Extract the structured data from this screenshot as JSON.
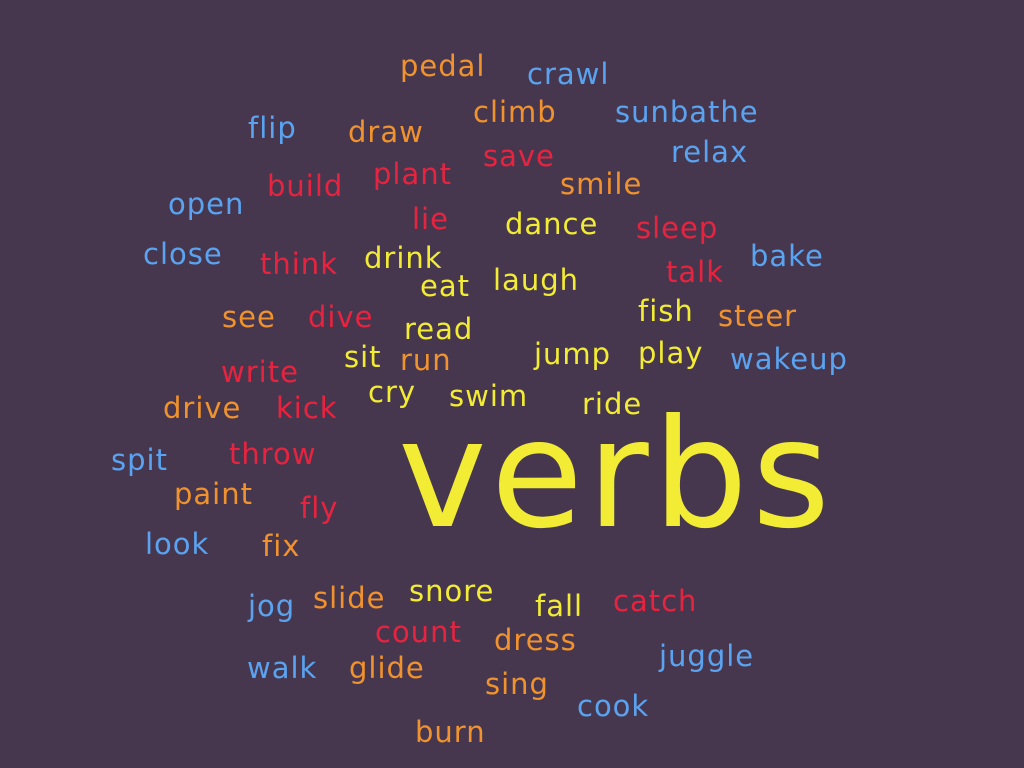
{
  "title": "verbs",
  "colors": {
    "background": "#46374f",
    "orange": "#f0922d",
    "blue": "#5aa3f0",
    "red": "#e8233f",
    "yellow": "#f2ec34"
  },
  "words": [
    {
      "text": "pedal",
      "color": "orange"
    },
    {
      "text": "crawl",
      "color": "blue"
    },
    {
      "text": "climb",
      "color": "orange"
    },
    {
      "text": "sunbathe",
      "color": "blue"
    },
    {
      "text": "flip",
      "color": "blue"
    },
    {
      "text": "draw",
      "color": "orange"
    },
    {
      "text": "save",
      "color": "red"
    },
    {
      "text": "relax",
      "color": "blue"
    },
    {
      "text": "build",
      "color": "red"
    },
    {
      "text": "plant",
      "color": "red"
    },
    {
      "text": "smile",
      "color": "orange"
    },
    {
      "text": "open",
      "color": "blue"
    },
    {
      "text": "lie",
      "color": "red"
    },
    {
      "text": "dance",
      "color": "yellow"
    },
    {
      "text": "sleep",
      "color": "red"
    },
    {
      "text": "close",
      "color": "blue"
    },
    {
      "text": "think",
      "color": "red"
    },
    {
      "text": "drink",
      "color": "yellow"
    },
    {
      "text": "talk",
      "color": "red"
    },
    {
      "text": "bake",
      "color": "blue"
    },
    {
      "text": "eat",
      "color": "yellow"
    },
    {
      "text": "laugh",
      "color": "yellow"
    },
    {
      "text": "see",
      "color": "orange"
    },
    {
      "text": "dive",
      "color": "red"
    },
    {
      "text": "fish",
      "color": "yellow"
    },
    {
      "text": "steer",
      "color": "orange"
    },
    {
      "text": "read",
      "color": "yellow"
    },
    {
      "text": "sit",
      "color": "yellow"
    },
    {
      "text": "run",
      "color": "orange"
    },
    {
      "text": "jump",
      "color": "yellow"
    },
    {
      "text": "play",
      "color": "yellow"
    },
    {
      "text": "wakeup",
      "color": "blue"
    },
    {
      "text": "write",
      "color": "red"
    },
    {
      "text": "cry",
      "color": "yellow"
    },
    {
      "text": "swim",
      "color": "yellow"
    },
    {
      "text": "drive",
      "color": "orange"
    },
    {
      "text": "kick",
      "color": "red"
    },
    {
      "text": "ride",
      "color": "yellow"
    },
    {
      "text": "spit",
      "color": "blue"
    },
    {
      "text": "throw",
      "color": "red"
    },
    {
      "text": "paint",
      "color": "orange"
    },
    {
      "text": "fly",
      "color": "red"
    },
    {
      "text": "look",
      "color": "blue"
    },
    {
      "text": "fix",
      "color": "orange"
    },
    {
      "text": "jog",
      "color": "blue"
    },
    {
      "text": "slide",
      "color": "orange"
    },
    {
      "text": "snore",
      "color": "yellow"
    },
    {
      "text": "fall",
      "color": "yellow"
    },
    {
      "text": "catch",
      "color": "red"
    },
    {
      "text": "count",
      "color": "red"
    },
    {
      "text": "dress",
      "color": "orange"
    },
    {
      "text": "juggle",
      "color": "blue"
    },
    {
      "text": "walk",
      "color": "blue"
    },
    {
      "text": "glide",
      "color": "orange"
    },
    {
      "text": "sing",
      "color": "orange"
    },
    {
      "text": "cook",
      "color": "blue"
    },
    {
      "text": "burn",
      "color": "orange"
    }
  ]
}
